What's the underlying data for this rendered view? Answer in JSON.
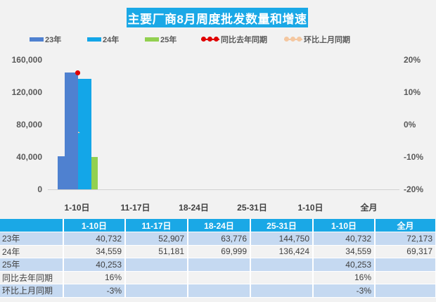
{
  "title": "主要厂商8月周度批发数量和增速",
  "legend": [
    {
      "label": "23年",
      "type": "bar",
      "color": "#4f81d0"
    },
    {
      "label": "24年",
      "type": "bar",
      "color": "#13a6e8"
    },
    {
      "label": "25年",
      "type": "bar",
      "color": "#92d050"
    },
    {
      "label": "同比去年同期",
      "type": "line-marker",
      "color": "#e00000"
    },
    {
      "label": "环比上月同期",
      "type": "line-marker",
      "color": "#f4c7a0"
    }
  ],
  "axes": {
    "left_ticks": [
      "160,000",
      "120,000",
      "80,000",
      "40,000",
      "0"
    ],
    "right_ticks": [
      "20%",
      "10%",
      "0%",
      "-10%",
      "-20%"
    ]
  },
  "chart_data": {
    "type": "bar",
    "title": "主要厂商8月周度批发数量和增速",
    "categories": [
      "1-10日",
      "11-17日",
      "18-24日",
      "25-31日",
      "1-10日",
      "全月"
    ],
    "series": [
      {
        "name": "23年",
        "axis": "left",
        "type": "bar",
        "values": [
          40732,
          52907,
          63776,
          144750,
          40732,
          72173
        ]
      },
      {
        "name": "24年",
        "axis": "left",
        "type": "bar",
        "values": [
          34559,
          51181,
          69999,
          136424,
          34559,
          69317
        ]
      },
      {
        "name": "25年",
        "axis": "left",
        "type": "bar",
        "values": [
          40253,
          null,
          null,
          null,
          40253,
          null
        ]
      },
      {
        "name": "同比去年同期",
        "axis": "right",
        "type": "scatter",
        "values": [
          0.16,
          null,
          null,
          null,
          0.16,
          null
        ]
      },
      {
        "name": "环比上月同期",
        "axis": "right",
        "type": "scatter",
        "values": [
          -0.03,
          null,
          null,
          null,
          -0.03,
          null
        ]
      }
    ],
    "ylim_left": [
      0,
      160000
    ],
    "ylim_right": [
      -0.2,
      0.2
    ],
    "xlabel": "",
    "ylabel": "",
    "legend_position": "top",
    "grid": false
  },
  "table": {
    "headers": [
      "",
      "1-10日",
      "11-17日",
      "18-24日",
      "25-31日",
      "1-10日",
      "全月"
    ],
    "rows": [
      [
        "23年",
        "40,732",
        "52,907",
        "63,776",
        "144,750",
        "40,732",
        "72,173"
      ],
      [
        "24年",
        "34,559",
        "51,181",
        "69,999",
        "136,424",
        "34,559",
        "69,317"
      ],
      [
        "25年",
        "40,253",
        "",
        "",
        "",
        "40,253",
        ""
      ],
      [
        "同比去年同期",
        "16%",
        "",
        "",
        "",
        "16%",
        ""
      ],
      [
        "环比上月同期",
        "-3%",
        "",
        "",
        "",
        "-3%",
        ""
      ]
    ]
  }
}
